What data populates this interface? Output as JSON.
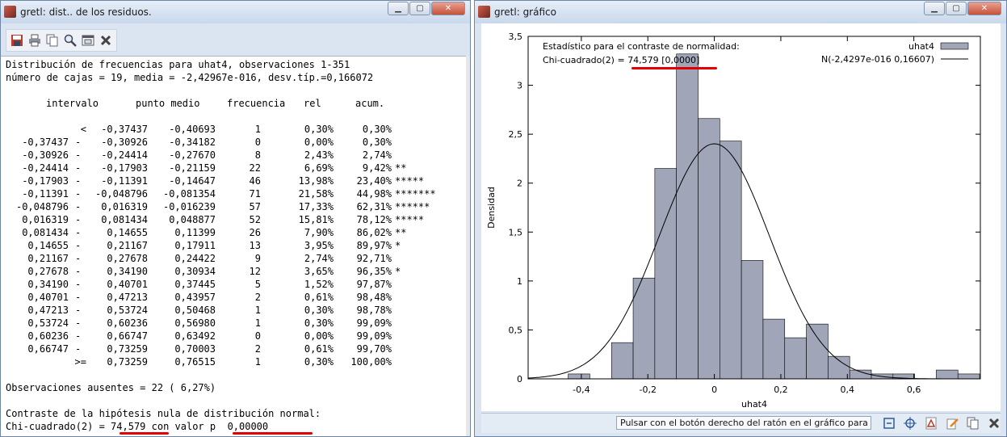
{
  "left_window": {
    "title": "gretl: dist.. de los residuos.",
    "toolbar_icons": [
      "save-icon",
      "print-icon",
      "copy-icon",
      "find-icon",
      "window-icon",
      "close-icon"
    ],
    "header_lines": [
      "Distribución de frecuencias para uhat4, observaciones 1-351",
      "número de cajas = 19, media = -2,42967e-016, desv.típ.=0,166072"
    ],
    "columns": [
      "intervalo",
      "punto medio",
      "frecuencia",
      "rel",
      "acum."
    ],
    "rows": [
      {
        "lo": "<",
        "hi": "-0,37437",
        "mid": "-0,40693",
        "freq": "1",
        "rel": "0,30%",
        "acum": "0,30%",
        "stars": ""
      },
      {
        "lo": "-0,37437",
        "hi": "-0,30926",
        "mid": "-0,34182",
        "freq": "0",
        "rel": "0,00%",
        "acum": "0,30%",
        "stars": ""
      },
      {
        "lo": "-0,30926",
        "hi": "-0,24414",
        "mid": "-0,27670",
        "freq": "8",
        "rel": "2,43%",
        "acum": "2,74%",
        "stars": ""
      },
      {
        "lo": "-0,24414",
        "hi": "-0,17903",
        "mid": "-0,21159",
        "freq": "22",
        "rel": "6,69%",
        "acum": "9,42%",
        "stars": "**"
      },
      {
        "lo": "-0,17903",
        "hi": "-0,11391",
        "mid": "-0,14647",
        "freq": "46",
        "rel": "13,98%",
        "acum": "23,40%",
        "stars": "*****"
      },
      {
        "lo": "-0,11391",
        "hi": "-0,048796",
        "mid": "-0,081354",
        "freq": "71",
        "rel": "21,58%",
        "acum": "44,98%",
        "stars": "*******"
      },
      {
        "lo": "-0,048796",
        "hi": "0,016319",
        "mid": "-0,016239",
        "freq": "57",
        "rel": "17,33%",
        "acum": "62,31%",
        "stars": "******"
      },
      {
        "lo": "0,016319",
        "hi": "0,081434",
        "mid": "0,048877",
        "freq": "52",
        "rel": "15,81%",
        "acum": "78,12%",
        "stars": "*****"
      },
      {
        "lo": "0,081434",
        "hi": "0,14655",
        "mid": "0,11399",
        "freq": "26",
        "rel": "7,90%",
        "acum": "86,02%",
        "stars": "**"
      },
      {
        "lo": "0,14655",
        "hi": "0,21167",
        "mid": "0,17911",
        "freq": "13",
        "rel": "3,95%",
        "acum": "89,97%",
        "stars": "*"
      },
      {
        "lo": "0,21167",
        "hi": "0,27678",
        "mid": "0,24422",
        "freq": "9",
        "rel": "2,74%",
        "acum": "92,71%",
        "stars": ""
      },
      {
        "lo": "0,27678",
        "hi": "0,34190",
        "mid": "0,30934",
        "freq": "12",
        "rel": "3,65%",
        "acum": "96,35%",
        "stars": "*"
      },
      {
        "lo": "0,34190",
        "hi": "0,40701",
        "mid": "0,37445",
        "freq": "5",
        "rel": "1,52%",
        "acum": "97,87%",
        "stars": ""
      },
      {
        "lo": "0,40701",
        "hi": "0,47213",
        "mid": "0,43957",
        "freq": "2",
        "rel": "0,61%",
        "acum": "98,48%",
        "stars": ""
      },
      {
        "lo": "0,47213",
        "hi": "0,53724",
        "mid": "0,50468",
        "freq": "1",
        "rel": "0,30%",
        "acum": "98,78%",
        "stars": ""
      },
      {
        "lo": "0,53724",
        "hi": "0,60236",
        "mid": "0,56980",
        "freq": "1",
        "rel": "0,30%",
        "acum": "99,09%",
        "stars": ""
      },
      {
        "lo": "0,60236",
        "hi": "0,66747",
        "mid": "0,63492",
        "freq": "0",
        "rel": "0,00%",
        "acum": "99,09%",
        "stars": ""
      },
      {
        "lo": "0,66747",
        "hi": "0,73259",
        "mid": "0,70003",
        "freq": "2",
        "rel": "0,61%",
        "acum": "99,70%",
        "stars": ""
      },
      {
        "lo": ">=",
        "hi": "0,73259",
        "mid": "0,76515",
        "freq": "1",
        "rel": "0,30%",
        "acum": "100,00%",
        "stars": ""
      }
    ],
    "missing_line": "Observaciones ausentes = 22 ( 6,27%)",
    "test_line1": "Contraste de la hipótesis nula de distribución normal:",
    "test_line2_prefix": "Chi-cuadrado(2) = ",
    "chi_value": "74,579",
    "test_line2_mid": " con valor p  ",
    "p_value": "0,00000"
  },
  "right_window": {
    "title": "gretl: gráfico",
    "status_text": "Pulsar con el botón derecho del ratón en el gráfico para ver un menú",
    "status_icons": [
      "zoom-icon",
      "target-icon",
      "pdf-icon",
      "edit-icon",
      "copy-icon",
      "close-icon"
    ]
  },
  "colors": {
    "bar_fill": "#a0a6b8",
    "bar_stroke": "#000000",
    "underline": "#e00000",
    "curve": "#000000"
  },
  "chart_data": {
    "type": "bar",
    "annotation_line1": "Estadístico para el contraste de normalidad:",
    "annotation_line2_prefix": "Chi-cuadrado(2) = ",
    "annotation_chi": "74,579",
    "annotation_p": "[0,0000]",
    "xlabel": "uhat4",
    "ylabel": "Densidad",
    "xlim": [
      -0.56,
      0.8
    ],
    "ylim": [
      0,
      3.5
    ],
    "xticks": [
      {
        "v": -0.4,
        "label": "-0,4"
      },
      {
        "v": -0.2,
        "label": "-0,2"
      },
      {
        "v": 0,
        "label": "0"
      },
      {
        "v": 0.2,
        "label": "0,2"
      },
      {
        "v": 0.4,
        "label": "0,4"
      },
      {
        "v": 0.6,
        "label": "0,6"
      }
    ],
    "yticks": [
      {
        "v": 0,
        "label": "0"
      },
      {
        "v": 0.5,
        "label": "0,5"
      },
      {
        "v": 1,
        "label": "1"
      },
      {
        "v": 1.5,
        "label": "1,5"
      },
      {
        "v": 2,
        "label": "2"
      },
      {
        "v": 2.5,
        "label": "2,5"
      },
      {
        "v": 3,
        "label": "3"
      },
      {
        "v": 3.5,
        "label": "3,5"
      }
    ],
    "bin_width": 0.065116,
    "bin_centers": [
      -0.40693,
      -0.34182,
      -0.2767,
      -0.21159,
      -0.14647,
      -0.081354,
      -0.016239,
      0.048877,
      0.11399,
      0.17911,
      0.24422,
      0.30934,
      0.37445,
      0.43957,
      0.50468,
      0.5698,
      0.63492,
      0.70003,
      0.76515
    ],
    "densities": [
      0.05,
      0,
      0.37,
      1.03,
      2.15,
      3.32,
      2.66,
      2.43,
      1.21,
      0.61,
      0.42,
      0.56,
      0.23,
      0.09,
      0.05,
      0.05,
      0,
      0.09,
      0.05
    ],
    "series": [
      {
        "name": "uhat4"
      },
      {
        "name": "N(-2,4297e-016 0,16607)",
        "mean": 0,
        "sd": 0.16607
      }
    ]
  }
}
